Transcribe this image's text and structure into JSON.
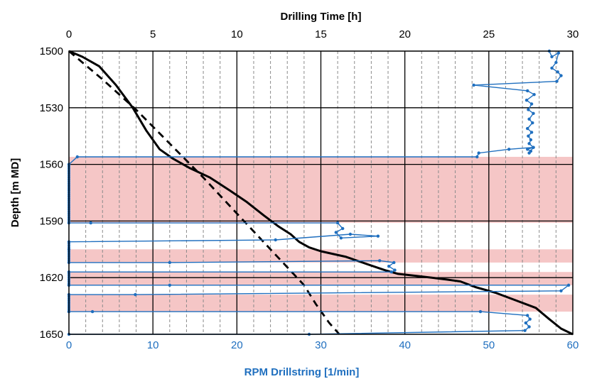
{
  "chart_data": {
    "type": "line",
    "colors": {
      "drilling": "#000000",
      "planned": "#000000",
      "rpm": "#1f6fbf",
      "band": "#f5c6c6",
      "rpm_axis_text": "#1f6fbf",
      "top_axis_text": "#000000"
    },
    "axes": {
      "top": {
        "label": "Drilling Time [h]",
        "range": [
          0,
          30
        ],
        "ticks": [
          "0",
          "5",
          "10",
          "15",
          "20",
          "25",
          "30"
        ],
        "tick_values": [
          0,
          5,
          10,
          15,
          20,
          25,
          30
        ]
      },
      "bottom": {
        "label": "RPM Drillstring [1/min]",
        "range": [
          0,
          60
        ],
        "ticks": [
          "0",
          "10",
          "20",
          "30",
          "40",
          "50",
          "60"
        ],
        "tick_values": [
          0,
          10,
          20,
          30,
          40,
          50,
          60
        ]
      },
      "left": {
        "label": "Depth [m MD]",
        "range": [
          1500,
          1650
        ],
        "inverted": true,
        "ticks": [
          "1500",
          "1530",
          "1560",
          "1590",
          "1620",
          "1650"
        ],
        "tick_values": [
          1500,
          1530,
          1560,
          1590,
          1620,
          1650
        ]
      }
    },
    "grid": {
      "major_vertical_h": 5,
      "minor_vertical_h": 1,
      "major_horizontal_m": 30
    },
    "shaded_bands_depth": [
      [
        1556,
        1591
      ],
      [
        1605,
        1612
      ],
      [
        1617,
        1624
      ],
      [
        1629,
        1638
      ]
    ],
    "series": [
      {
        "kind": "drilling_time_actual",
        "axis": "top",
        "style": "solid",
        "x": [
          0,
          0.8,
          1.8,
          2.8,
          3.8,
          4.6,
          5.4,
          6.2,
          7.2,
          8.4,
          9.6,
          10.6,
          11.6,
          12.5,
          13.2,
          13.7,
          14.3,
          15.0,
          15.5,
          16.5,
          17.8,
          18.8,
          19.6,
          20.6,
          21.6,
          22.5,
          23.3,
          24.2,
          25.4,
          26.6,
          27.8,
          28.6,
          29.3,
          30.0
        ],
        "y": [
          1500,
          1503,
          1508,
          1518,
          1530,
          1542,
          1552,
          1557,
          1562,
          1567,
          1574,
          1580,
          1587,
          1593,
          1597,
          1601,
          1604,
          1606,
          1607,
          1609,
          1613,
          1616,
          1618,
          1619,
          1620,
          1621,
          1622,
          1625,
          1628,
          1632,
          1636,
          1642,
          1647,
          1650
        ]
      },
      {
        "kind": "drilling_time_planned",
        "axis": "top",
        "style": "dashed",
        "x": [
          0,
          2.0,
          4.0,
          6.0,
          8.0,
          10.0,
          12.0,
          14.0,
          14.7,
          15.5,
          16.1
        ],
        "y": [
          1500,
          1515,
          1531,
          1549,
          1567,
          1586,
          1605,
          1624,
          1634,
          1644,
          1650
        ]
      },
      {
        "kind": "rpm",
        "axis": "bottom",
        "style": "marker-line",
        "x": [
          57.2,
          57.5,
          58.3,
          58.0,
          57.5,
          58.2,
          58.6,
          58.1,
          48.2,
          54.6,
          55.4,
          54.5,
          55.1,
          54.7,
          55.3,
          54.8,
          55.2,
          54.6,
          55.1,
          54.7,
          55.0,
          54.8,
          55.3,
          54.6,
          55.0,
          54.8,
          55.3,
          52.4,
          48.8,
          48.6,
          1.0,
          0,
          0,
          2.6,
          32.0,
          32.6,
          31.8,
          32.4,
          36.8,
          33.5,
          24.6,
          0,
          0,
          0,
          12.0,
          37.0,
          38.7,
          38.1,
          38.8,
          38.4,
          0,
          0,
          0,
          12.0,
          59.5,
          58.6,
          7.9,
          0,
          0,
          0,
          2.8,
          49.0,
          54.6,
          54.9,
          54.4,
          54.8,
          54.3,
          28.6,
          0
        ],
        "y": [
          1500,
          1503,
          1501,
          1506,
          1509,
          1511,
          1513,
          1516,
          1518,
          1521,
          1523,
          1526,
          1528,
          1531,
          1533,
          1536,
          1538,
          1541,
          1543,
          1545,
          1547,
          1549,
          1551,
          1552,
          1553,
          1554,
          1551,
          1552,
          1554,
          1556,
          1556,
          1560,
          1591,
          1591,
          1591,
          1594,
          1596,
          1599,
          1598,
          1597,
          1600,
          1601,
          1605,
          1612,
          1612,
          1611,
          1612,
          1614,
          1616,
          1617,
          1617,
          1624,
          1624,
          1624,
          1624,
          1627,
          1629,
          1629,
          1638,
          1638,
          1638,
          1638,
          1640,
          1642,
          1644,
          1646,
          1648,
          1650,
          1650
        ]
      }
    ]
  }
}
